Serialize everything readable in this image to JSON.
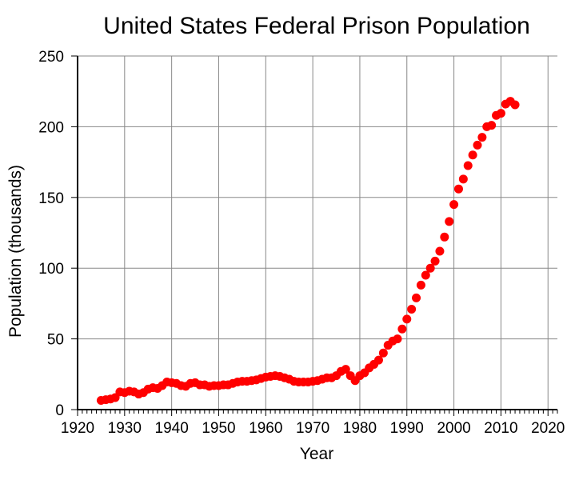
{
  "chart_data": {
    "type": "scatter",
    "title": "United States Federal Prison Population",
    "xlabel": "Year",
    "ylabel": "Population (thousands)",
    "xlim": [
      1920,
      2022
    ],
    "ylim": [
      0,
      250
    ],
    "xticks": [
      1920,
      1930,
      1940,
      1950,
      1960,
      1970,
      1980,
      1990,
      2000,
      2010,
      2020
    ],
    "yticks": [
      0,
      50,
      100,
      150,
      200,
      250
    ],
    "grid": true,
    "marker_color": "#ff0000",
    "x": [
      1925,
      1926,
      1927,
      1928,
      1929,
      1930,
      1931,
      1932,
      1933,
      1934,
      1935,
      1936,
      1937,
      1938,
      1939,
      1940,
      1941,
      1942,
      1943,
      1944,
      1945,
      1946,
      1947,
      1948,
      1949,
      1950,
      1951,
      1952,
      1953,
      1954,
      1955,
      1956,
      1957,
      1958,
      1959,
      1960,
      1961,
      1962,
      1963,
      1964,
      1965,
      1966,
      1967,
      1968,
      1969,
      1970,
      1971,
      1972,
      1973,
      1974,
      1975,
      1976,
      1977,
      1978,
      1979,
      1980,
      1981,
      1982,
      1983,
      1984,
      1985,
      1986,
      1987,
      1988,
      1989,
      1990,
      1991,
      1992,
      1993,
      1994,
      1995,
      1996,
      1997,
      1998,
      1999,
      2000,
      2001,
      2002,
      2003,
      2004,
      2005,
      2006,
      2007,
      2008,
      2009,
      2010,
      2011,
      2012,
      2013
    ],
    "y": [
      6.5,
      7,
      7.5,
      8.5,
      12.5,
      12,
      13,
      12.5,
      11,
      12,
      14.5,
      15.5,
      15,
      17,
      19.5,
      19,
      18.5,
      17,
      16.5,
      18.5,
      19,
      17.5,
      17.5,
      16.5,
      17,
      17,
      17.5,
      17.5,
      18.5,
      19.5,
      20,
      20,
      20.5,
      21,
      22,
      23,
      23.5,
      24,
      23.5,
      22.5,
      21.5,
      20,
      19.5,
      19.5,
      19.5,
      20,
      20.5,
      21.5,
      22.5,
      22.5,
      24,
      27,
      28.5,
      24,
      20.5,
      24,
      26,
      29.5,
      32,
      35,
      40,
      45.5,
      48.5,
      50,
      57,
      64,
      71,
      79,
      88,
      95,
      100,
      105,
      112,
      122,
      133,
      145,
      156,
      163,
      172.5,
      180,
      187,
      192.5,
      200,
      201,
      208,
      209.5,
      216,
      218,
      215.5
    ]
  }
}
